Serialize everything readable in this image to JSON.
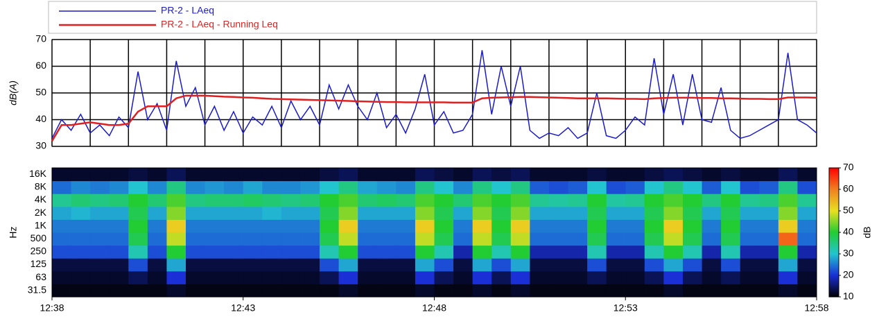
{
  "chart_data": [
    {
      "type": "line",
      "ylabel": "dB(A)",
      "x": [
        38,
        38.25,
        38.5,
        38.75,
        39,
        39.25,
        39.5,
        39.75,
        40,
        40.25,
        40.5,
        40.75,
        41,
        41.25,
        41.5,
        41.75,
        42,
        42.25,
        42.5,
        42.75,
        43,
        43.25,
        43.5,
        43.75,
        44,
        44.25,
        44.5,
        44.75,
        45,
        45.25,
        45.5,
        45.75,
        46,
        46.25,
        46.5,
        46.75,
        47,
        47.25,
        47.5,
        47.75,
        48,
        48.25,
        48.5,
        48.75,
        49,
        49.25,
        49.5,
        49.75,
        50,
        50.25,
        50.5,
        50.75,
        51,
        51.25,
        51.5,
        51.75,
        52,
        52.25,
        52.5,
        52.75,
        53,
        53.25,
        53.5,
        53.75,
        54,
        54.25,
        54.5,
        54.75,
        55,
        55.25,
        55.5,
        55.75,
        56,
        56.25,
        56.5,
        56.75,
        57,
        57.25,
        57.5,
        57.75,
        58
      ],
      "series": [
        {
          "name": "PR-2 - LAeq",
          "color": "#1a1ac8",
          "values": [
            33,
            40,
            36,
            42,
            35,
            38,
            34,
            41,
            37,
            58,
            40,
            46,
            36,
            62,
            45,
            52,
            38,
            45,
            36,
            43,
            35,
            41,
            38,
            45,
            37,
            47,
            40,
            45,
            38,
            53,
            44,
            53,
            45,
            40,
            50,
            37,
            42,
            35,
            44,
            57,
            38,
            43,
            35,
            36,
            42,
            66,
            42,
            60,
            45,
            60,
            36,
            33,
            35,
            34,
            37,
            33,
            35,
            50,
            34,
            33,
            36,
            41,
            38,
            63,
            42,
            57,
            38,
            57,
            40,
            39,
            52,
            36,
            33,
            34,
            36,
            38,
            40,
            65,
            40,
            38,
            35
          ]
        },
        {
          "name": "PR-2 - LAeq - Running Leq",
          "color": "#e02020",
          "values": [
            32,
            38,
            38,
            38.5,
            39,
            38.5,
            38,
            38,
            38.5,
            43,
            45,
            45,
            45,
            48,
            49,
            49,
            49,
            48.8,
            48.6,
            48.5,
            48.3,
            48.2,
            48,
            47.8,
            47.7,
            47.6,
            47.5,
            47.4,
            47.3,
            47.2,
            47.1,
            47,
            46.9,
            46.8,
            46.7,
            46.6,
            46.6,
            46.5,
            46.5,
            46.5,
            46.5,
            46.5,
            46.4,
            46.4,
            46.4,
            48,
            48.2,
            48.3,
            48.4,
            48.5,
            48.5,
            48.4,
            48.3,
            48.2,
            48.1,
            48,
            48,
            48,
            48,
            47.9,
            47.8,
            47.8,
            47.7,
            48,
            48.1,
            48.2,
            48.2,
            48.2,
            48.1,
            48.1,
            48,
            48,
            47.9,
            47.8,
            47.8,
            47.7,
            47.7,
            48.3,
            48.3,
            48.3,
            48.2
          ]
        }
      ],
      "xlim": [
        38,
        58
      ],
      "xticks": [
        38,
        39,
        40,
        41,
        42,
        43,
        44,
        45,
        46,
        47,
        48,
        49,
        50,
        51,
        52,
        53,
        54,
        55,
        56,
        57,
        58
      ],
      "ylim": [
        30,
        70
      ],
      "yticks": [
        30,
        40,
        50,
        60,
        70
      ],
      "grid": true
    },
    {
      "type": "heatmap",
      "ylabel": "Hz",
      "zlabel": "dB",
      "categories": [
        "31.5",
        "63",
        "125",
        "250",
        "500",
        "1K",
        "2K",
        "4K",
        "8K",
        "16K"
      ],
      "x": [
        38.25,
        38.75,
        39.25,
        39.75,
        40.25,
        40.75,
        41.25,
        41.75,
        42.25,
        42.75,
        43.25,
        43.75,
        44.25,
        44.75,
        45.25,
        45.75,
        46.25,
        46.75,
        47.25,
        47.75,
        48.25,
        48.75,
        49.25,
        49.75,
        50.25,
        50.75,
        51.25,
        51.75,
        52.25,
        52.75,
        53.25,
        53.75,
        54.25,
        54.75,
        55.25,
        55.75,
        56.25,
        56.75,
        57.25,
        57.75
      ],
      "z": [
        [
          11,
          11,
          11,
          11,
          11,
          11,
          12,
          11,
          11,
          11,
          11,
          11,
          11,
          11,
          11,
          12,
          11,
          11,
          11,
          12,
          11,
          11,
          12,
          11,
          12,
          11,
          11,
          11,
          11,
          11,
          11,
          11,
          12,
          11,
          11,
          11,
          11,
          11,
          12,
          11
        ],
        [
          12,
          12,
          12,
          12,
          14,
          12,
          20,
          12,
          12,
          12,
          12,
          12,
          12,
          12,
          14,
          20,
          12,
          12,
          12,
          20,
          14,
          12,
          20,
          14,
          20,
          12,
          12,
          12,
          14,
          12,
          12,
          14,
          20,
          14,
          12,
          14,
          12,
          12,
          20,
          12
        ],
        [
          13,
          13,
          13,
          13,
          22,
          13,
          28,
          13,
          13,
          13,
          13,
          13,
          13,
          13,
          22,
          28,
          13,
          13,
          13,
          28,
          22,
          13,
          28,
          22,
          28,
          13,
          13,
          13,
          22,
          13,
          13,
          22,
          28,
          22,
          13,
          22,
          13,
          13,
          28,
          13
        ],
        [
          22,
          22,
          22,
          22,
          32,
          22,
          40,
          22,
          22,
          22,
          22,
          22,
          22,
          22,
          32,
          40,
          22,
          22,
          22,
          40,
          32,
          18,
          40,
          32,
          40,
          18,
          18,
          18,
          32,
          18,
          18,
          32,
          40,
          32,
          18,
          32,
          18,
          18,
          40,
          18
        ],
        [
          24,
          24,
          24,
          24,
          38,
          24,
          48,
          24,
          24,
          24,
          24,
          24,
          24,
          24,
          38,
          48,
          24,
          24,
          24,
          48,
          38,
          24,
          48,
          38,
          48,
          24,
          24,
          24,
          38,
          24,
          24,
          38,
          48,
          38,
          24,
          38,
          24,
          24,
          62,
          24
        ],
        [
          25,
          25,
          25,
          25,
          40,
          25,
          52,
          25,
          25,
          25,
          25,
          25,
          25,
          25,
          40,
          52,
          25,
          25,
          25,
          52,
          40,
          25,
          52,
          40,
          52,
          25,
          25,
          25,
          40,
          25,
          25,
          40,
          52,
          40,
          25,
          40,
          25,
          25,
          52,
          25
        ],
        [
          28,
          29,
          28,
          28,
          38,
          28,
          45,
          28,
          28,
          28,
          28,
          29,
          28,
          28,
          38,
          45,
          28,
          28,
          28,
          45,
          38,
          28,
          45,
          38,
          45,
          28,
          28,
          28,
          38,
          28,
          28,
          38,
          45,
          38,
          28,
          38,
          28,
          28,
          45,
          28
        ],
        [
          34,
          36,
          35,
          36,
          40,
          36,
          42,
          35,
          36,
          36,
          37,
          36,
          35,
          36,
          40,
          42,
          36,
          37,
          36,
          42,
          40,
          36,
          42,
          40,
          42,
          34,
          33,
          34,
          40,
          33,
          34,
          40,
          42,
          40,
          35,
          40,
          34,
          35,
          42,
          34
        ],
        [
          24,
          26,
          25,
          26,
          30,
          26,
          35,
          26,
          27,
          26,
          28,
          26,
          26,
          27,
          30,
          35,
          28,
          27,
          26,
          35,
          30,
          26,
          35,
          30,
          35,
          23,
          22,
          23,
          30,
          22,
          23,
          30,
          35,
          30,
          23,
          30,
          22,
          23,
          35,
          22
        ],
        [
          12,
          12,
          12,
          12,
          13,
          12,
          14,
          12,
          12,
          12,
          12,
          12,
          12,
          12,
          13,
          14,
          12,
          12,
          12,
          14,
          13,
          12,
          14,
          13,
          14,
          12,
          12,
          12,
          13,
          12,
          12,
          13,
          14,
          13,
          12,
          13,
          12,
          12,
          14,
          12
        ]
      ],
      "xlim": [
        38,
        58
      ],
      "xticks": [
        {
          "value": 38,
          "label": "12:38"
        },
        {
          "value": 43,
          "label": "12:43"
        },
        {
          "value": 48,
          "label": "12:48"
        },
        {
          "value": 53,
          "label": "12:53"
        },
        {
          "value": 58,
          "label": "12:58"
        }
      ],
      "zlim": [
        10,
        70
      ],
      "zticks": [
        10,
        20,
        30,
        40,
        50,
        60,
        70
      ],
      "colorscale": [
        "#000000",
        "#1a2fd6",
        "#22c4d0",
        "#22cc33",
        "#e8e020",
        "#f08020",
        "#ff0000"
      ]
    }
  ]
}
